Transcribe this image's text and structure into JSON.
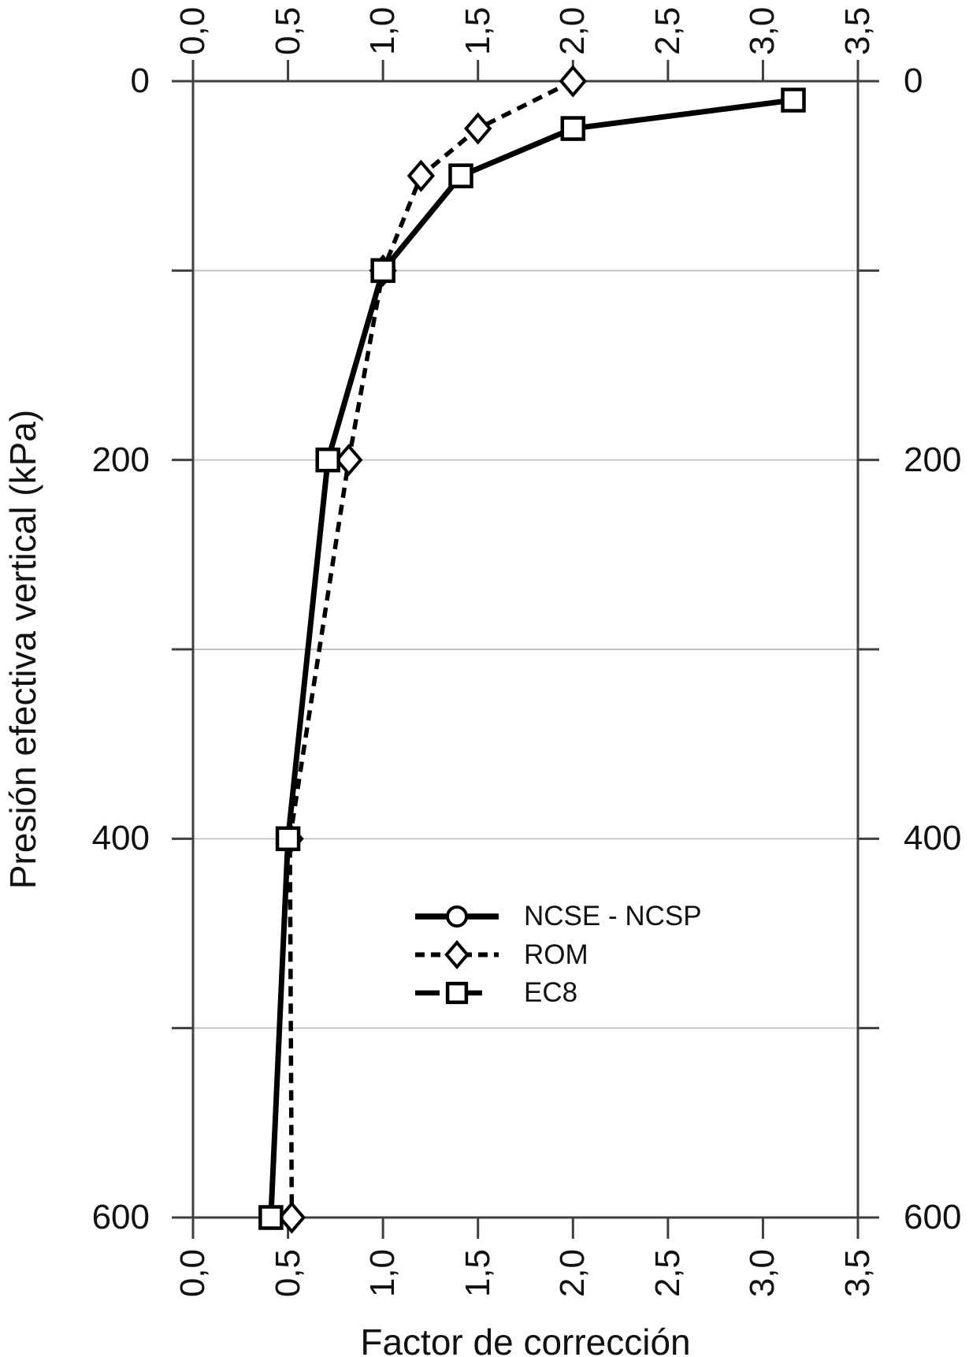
{
  "colors": {
    "background": "#ffffff",
    "axis": "#3f3f3f",
    "grid": "#c6c6c6",
    "series": "#000000",
    "marker_fill": "#ffffff",
    "text": "#111111"
  },
  "chart_data": {
    "type": "line",
    "title": "",
    "xlabel": "Factor de corrección",
    "ylabel": "Presión efectiva vertical (kPa)",
    "xlim": [
      0,
      3.5
    ],
    "ylim": [
      0,
      600
    ],
    "y_inverted": true,
    "x_ticks": [
      {
        "v": 0.0,
        "label": "0,0"
      },
      {
        "v": 0.5,
        "label": "0,5"
      },
      {
        "v": 1.0,
        "label": "1,0"
      },
      {
        "v": 1.5,
        "label": "1,5"
      },
      {
        "v": 2.0,
        "label": "2,0"
      },
      {
        "v": 2.5,
        "label": "2,5"
      },
      {
        "v": 3.0,
        "label": "3,0"
      },
      {
        "v": 3.5,
        "label": "3,5"
      }
    ],
    "y_major_ticks": [
      {
        "v": 0,
        "label": "0"
      },
      {
        "v": 200,
        "label": "200"
      },
      {
        "v": 400,
        "label": "400"
      },
      {
        "v": 600,
        "label": "600"
      }
    ],
    "y_minor_tick_values": [
      0,
      100,
      200,
      300,
      400,
      500,
      600
    ],
    "gridline_values": [
      100,
      200,
      300,
      400,
      500
    ],
    "grid": "horizontal-only",
    "legend_position": "inside-lower-center",
    "series": [
      {
        "name": "NCSE - NCSP",
        "line": "solid",
        "marker": "circle",
        "points": [
          [
            3.16,
            10
          ],
          [
            2.0,
            25
          ],
          [
            1.41,
            50
          ],
          [
            1.0,
            100
          ],
          [
            0.71,
            200
          ],
          [
            0.5,
            400
          ],
          [
            0.41,
            600
          ]
        ]
      },
      {
        "name": "ROM",
        "line": "dashed",
        "marker": "diamond",
        "points": [
          [
            2.0,
            0
          ],
          [
            1.5,
            25
          ],
          [
            1.2,
            50
          ],
          [
            1.0,
            100
          ],
          [
            0.82,
            200
          ],
          [
            0.51,
            400
          ],
          [
            0.52,
            600
          ]
        ]
      },
      {
        "name": "EC8",
        "line": "long-dash",
        "marker": "square",
        "points": [
          [
            3.16,
            10
          ],
          [
            2.0,
            25
          ],
          [
            1.41,
            50
          ],
          [
            1.0,
            100
          ],
          [
            0.71,
            200
          ],
          [
            0.5,
            400
          ],
          [
            0.41,
            600
          ]
        ]
      }
    ]
  }
}
